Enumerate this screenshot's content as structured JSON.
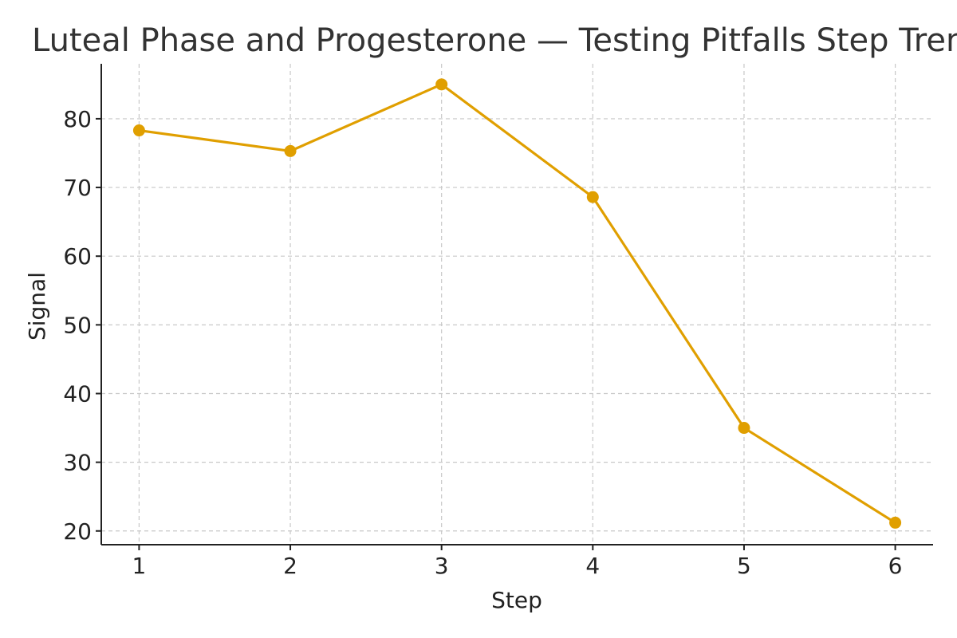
{
  "chart_data": {
    "type": "line",
    "title": "Luteal Phase and Progesterone — Testing Pitfalls Step Trend",
    "xlabel": "Step",
    "ylabel": "Signal",
    "x": [
      1,
      2,
      3,
      4,
      5,
      6
    ],
    "xticks": [
      "1",
      "2",
      "3",
      "4",
      "5",
      "6"
    ],
    "yticks": [
      20,
      30,
      40,
      50,
      60,
      70,
      80
    ],
    "ytick_labels": [
      "20",
      "30",
      "40",
      "50",
      "60",
      "70",
      "80"
    ],
    "xlim": [
      0.75,
      6.25
    ],
    "ylim": [
      18,
      88
    ],
    "grid": true,
    "series": [
      {
        "name": "Signal",
        "color": "#E09F00",
        "values": [
          78.3,
          75.3,
          85.0,
          68.6,
          35.0,
          21.2
        ]
      }
    ]
  }
}
